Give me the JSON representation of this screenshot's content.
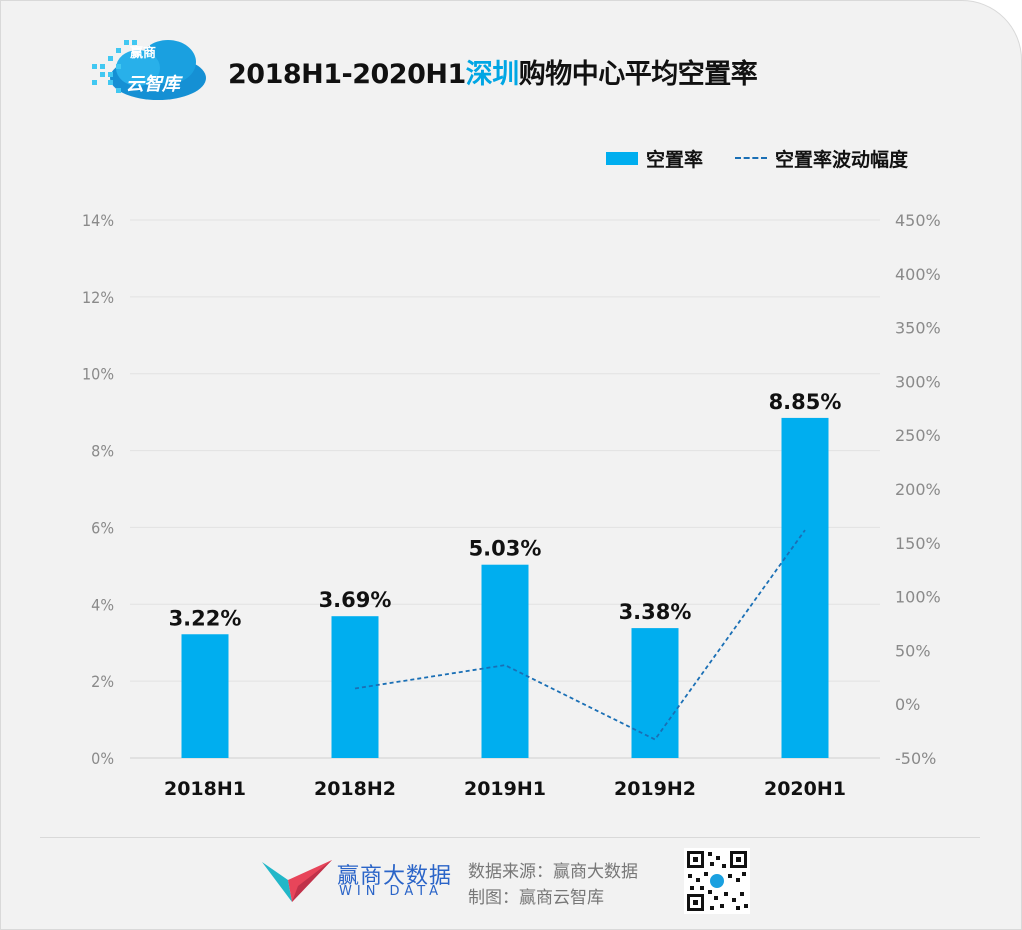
{
  "header": {
    "logo_text_top": "赢商",
    "logo_text_main": "云智库",
    "title_prefix": "2018H1-2020H1",
    "title_highlight": "深圳",
    "title_suffix": "购物中心平均空置率",
    "highlight_color": "#00a6e4"
  },
  "legend": {
    "bar_label": "空置率",
    "line_label": "空置率波动幅度"
  },
  "chart_data": {
    "type": "bar",
    "categories": [
      "2018H1",
      "2018H2",
      "2019H1",
      "2019H2",
      "2020H1"
    ],
    "series": [
      {
        "name": "空置率",
        "type": "bar",
        "axis": "left",
        "values": [
          3.22,
          3.69,
          5.03,
          3.38,
          8.85
        ],
        "labels": [
          "3.22%",
          "3.69%",
          "5.03%",
          "3.38%",
          "8.85%"
        ],
        "color": "#00aeef"
      },
      {
        "name": "空置率波动幅度",
        "type": "line",
        "axis": "right",
        "style": "dashed",
        "values": [
          null,
          14.6,
          36.3,
          -32.8,
          161.8
        ],
        "color": "#1a6fb5"
      }
    ],
    "left_axis": {
      "ylim": [
        0,
        14
      ],
      "ticks": [
        0,
        2,
        4,
        6,
        8,
        10,
        12,
        14
      ],
      "tick_labels": [
        "0%",
        "2%",
        "4%",
        "6%",
        "8%",
        "10%",
        "12%",
        "14%"
      ]
    },
    "right_axis": {
      "ylim": [
        -50,
        450
      ],
      "ticks": [
        -50,
        0,
        50,
        100,
        150,
        200,
        250,
        300,
        350,
        400,
        450
      ],
      "tick_labels": [
        "-50%",
        "0%",
        "50%",
        "100%",
        "150%",
        "200%",
        "250%",
        "300%",
        "350%",
        "400%",
        "450%"
      ]
    },
    "grid": true,
    "legend_position": "top-right"
  },
  "footer": {
    "brand_cn": "赢商大数据",
    "brand_en": "WIN DATA",
    "source_line": "数据来源：赢商大数据",
    "made_line": "制图：赢商云智库"
  }
}
